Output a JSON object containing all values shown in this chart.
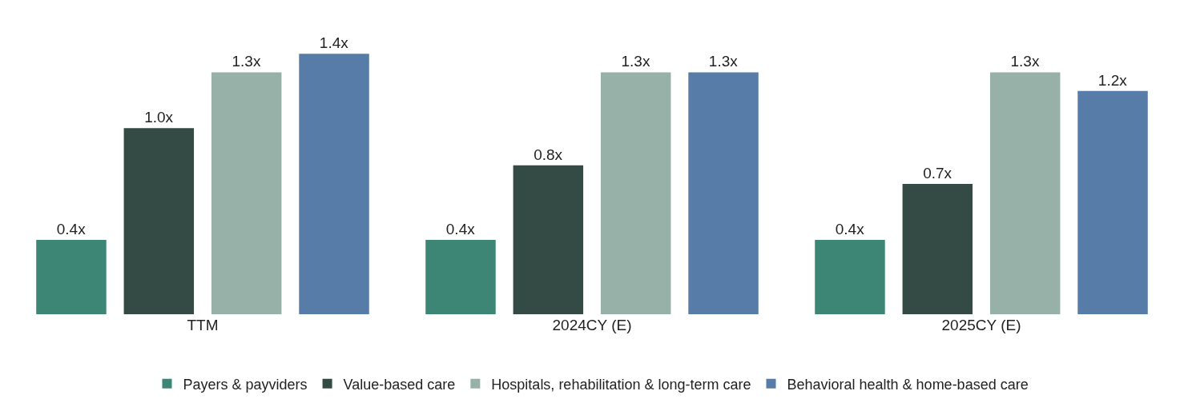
{
  "chart_data": {
    "type": "bar",
    "categories": [
      "TTM",
      "2024CY (E)",
      "2025CY (E)"
    ],
    "series": [
      {
        "name": "Payers & payviders",
        "color": "#3d8574",
        "values": [
          0.4,
          0.4,
          0.4
        ],
        "value_labels": [
          "0.4x",
          "0.4x",
          "0.4x"
        ]
      },
      {
        "name": "Value-based care",
        "color": "#344a44",
        "values": [
          1.0,
          0.8,
          0.7
        ],
        "value_labels": [
          "1.0x",
          "0.8x",
          "0.7x"
        ]
      },
      {
        "name": "Hospitals, rehabilitation & long-term care",
        "color": "#97b0a8",
        "values": [
          1.3,
          1.3,
          1.3
        ],
        "value_labels": [
          "1.3x",
          "1.3x",
          "1.3x"
        ]
      },
      {
        "name": "Behavioral health & home-based care",
        "color": "#577ca8",
        "values": [
          1.4,
          1.3,
          1.2
        ],
        "value_labels": [
          "1.4x",
          "1.3x",
          "1.2x"
        ]
      }
    ],
    "legend": "bottom",
    "grid": false
  }
}
